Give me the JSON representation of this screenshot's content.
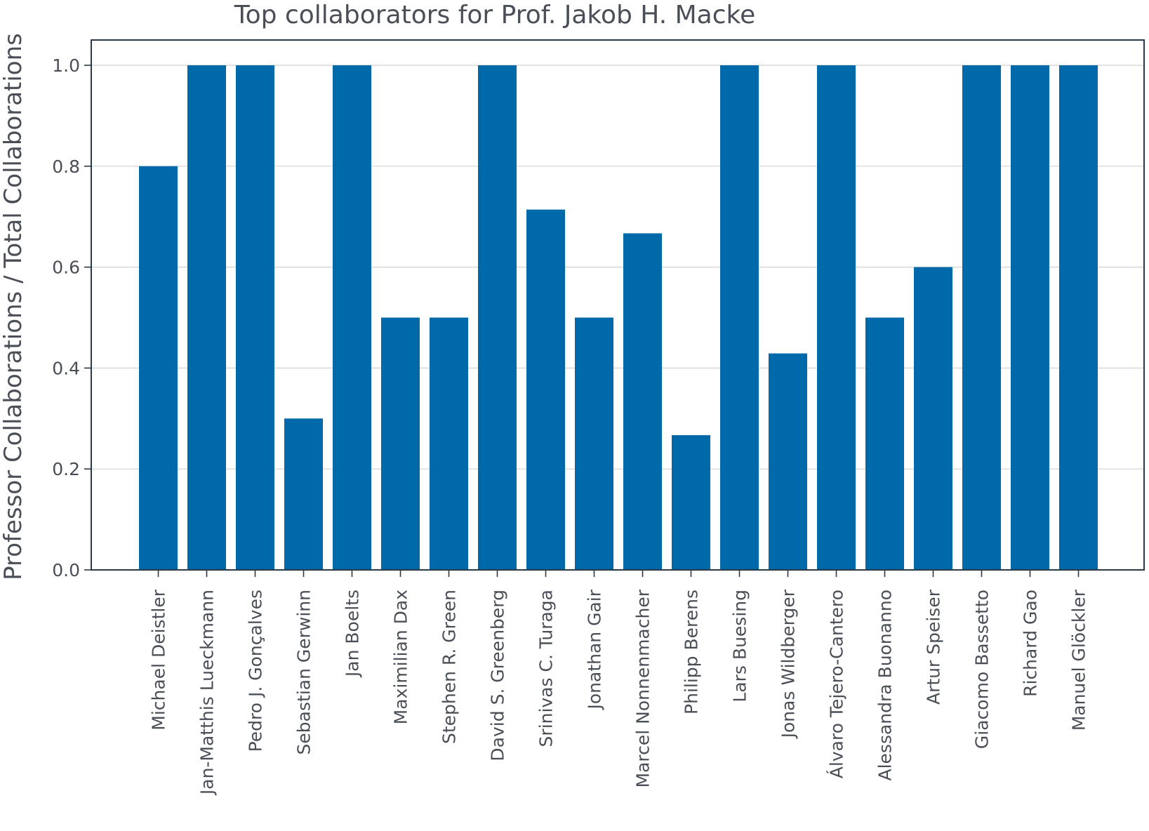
{
  "chart_data": {
    "type": "bar",
    "title": "Top collaborators for Prof. Jakob H. Macke",
    "xlabel": "",
    "ylabel": "Professor Collaborations / Total Collaborations",
    "ylim": [
      0,
      1.05
    ],
    "yticks": [
      "0.0",
      "0.2",
      "0.4",
      "0.6",
      "0.8",
      "1.0"
    ],
    "grid": "horizontal",
    "bar_color": "#0069aa",
    "categories": [
      "Michael Deistler",
      "Jan-Matthis Lueckmann",
      "Pedro J. Gonçalves",
      "Sebastian Gerwinn",
      "Jan Boelts",
      "Maximilian Dax",
      "Stephen R. Green",
      "David S. Greenberg",
      "Srinivas C. Turaga",
      "Jonathan Gair",
      "Marcel Nonnenmacher",
      "Philipp Berens",
      "Lars Buesing",
      "Jonas Wildberger",
      "Álvaro Tejero-Cantero",
      "Alessandra Buonanno",
      "Artur Speiser",
      "Giacomo Bassetto",
      "Richard Gao",
      "Manuel Glöckler"
    ],
    "values": [
      0.8,
      1.0,
      1.0,
      0.3,
      1.0,
      0.5,
      0.5,
      1.0,
      0.714,
      0.5,
      0.667,
      0.267,
      1.0,
      0.429,
      1.0,
      0.5,
      0.6,
      1.0,
      1.0,
      1.0
    ]
  }
}
